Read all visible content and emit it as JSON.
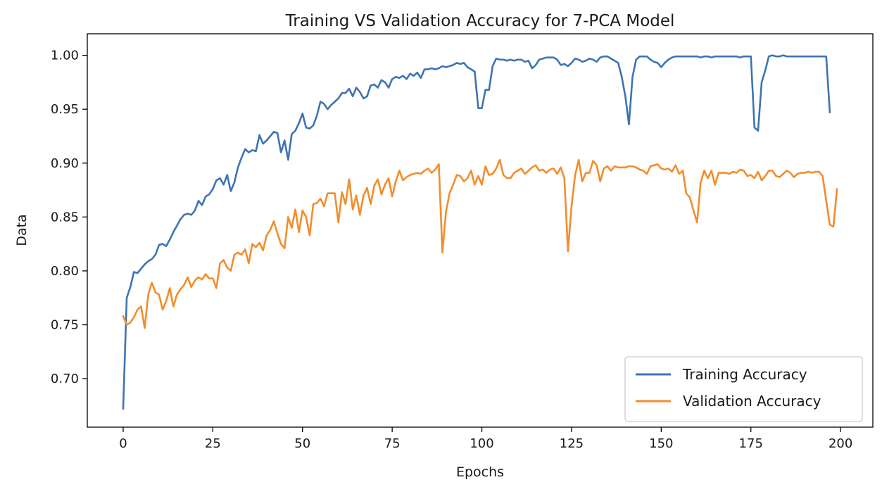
{
  "chart_data": {
    "type": "line",
    "title": "Training VS Validation Accuracy for 7-PCA Model",
    "xlabel": "Epochs",
    "ylabel": "Data",
    "xlim": [
      -10,
      209
    ],
    "ylim": [
      0.655,
      1.02
    ],
    "x_ticks": [
      0,
      25,
      50,
      75,
      100,
      125,
      150,
      175,
      200
    ],
    "y_ticks": [
      0.7,
      0.75,
      0.8,
      0.85,
      0.9,
      0.95,
      1.0
    ],
    "y_tick_labels": [
      "0.70",
      "0.75",
      "0.80",
      "0.85",
      "0.90",
      "0.95",
      "1.00"
    ],
    "x_tick_labels": [
      "0",
      "25",
      "50",
      "75",
      "100",
      "125",
      "150",
      "175",
      "200"
    ],
    "grid": false,
    "legend_position": "lower-right",
    "x_start": 0,
    "x_step": 1,
    "series": [
      {
        "name": "Training Accuracy",
        "color": "#3d74b3",
        "values": [
          0.672,
          0.775,
          0.785,
          0.799,
          0.798,
          0.802,
          0.806,
          0.809,
          0.811,
          0.815,
          0.824,
          0.825,
          0.823,
          0.829,
          0.836,
          0.842,
          0.848,
          0.852,
          0.853,
          0.852,
          0.856,
          0.865,
          0.861,
          0.869,
          0.871,
          0.876,
          0.884,
          0.886,
          0.88,
          0.889,
          0.874,
          0.882,
          0.896,
          0.905,
          0.913,
          0.91,
          0.912,
          0.911,
          0.926,
          0.918,
          0.921,
          0.925,
          0.929,
          0.928,
          0.91,
          0.921,
          0.903,
          0.927,
          0.93,
          0.937,
          0.946,
          0.933,
          0.932,
          0.935,
          0.944,
          0.957,
          0.955,
          0.95,
          0.954,
          0.957,
          0.96,
          0.965,
          0.965,
          0.969,
          0.962,
          0.97,
          0.966,
          0.96,
          0.962,
          0.972,
          0.973,
          0.97,
          0.977,
          0.975,
          0.97,
          0.978,
          0.98,
          0.979,
          0.981,
          0.978,
          0.983,
          0.981,
          0.984,
          0.979,
          0.987,
          0.987,
          0.988,
          0.987,
          0.988,
          0.99,
          0.989,
          0.99,
          0.991,
          0.993,
          0.992,
          0.993,
          0.989,
          0.987,
          0.985,
          0.951,
          0.951,
          0.968,
          0.968,
          0.99,
          0.997,
          0.996,
          0.996,
          0.995,
          0.996,
          0.995,
          0.996,
          0.996,
          0.994,
          0.995,
          0.988,
          0.991,
          0.996,
          0.997,
          0.998,
          0.998,
          0.998,
          0.996,
          0.991,
          0.992,
          0.99,
          0.993,
          0.997,
          0.996,
          0.994,
          0.995,
          0.997,
          0.996,
          0.994,
          0.998,
          0.999,
          0.999,
          0.997,
          0.995,
          0.993,
          0.98,
          0.962,
          0.936,
          0.98,
          0.996,
          0.999,
          0.999,
          0.999,
          0.996,
          0.994,
          0.993,
          0.989,
          0.993,
          0.996,
          0.998,
          0.999,
          0.999,
          0.999,
          0.999,
          0.999,
          0.999,
          0.999,
          0.998,
          0.999,
          0.999,
          0.998,
          0.999,
          0.999,
          0.999,
          0.999,
          0.999,
          0.999,
          0.999,
          0.998,
          0.999,
          0.999,
          0.999,
          0.933,
          0.93,
          0.975,
          0.986,
          0.999,
          1.0,
          0.999,
          0.999,
          1.0,
          0.999,
          0.999,
          0.999,
          0.999,
          0.999,
          0.999,
          0.999,
          0.999,
          0.999,
          0.999,
          0.999,
          0.999,
          0.947
        ]
      },
      {
        "name": "Validation Accuracy",
        "color": "#f28d2c",
        "values": [
          0.758,
          0.75,
          0.752,
          0.757,
          0.764,
          0.767,
          0.747,
          0.778,
          0.789,
          0.78,
          0.778,
          0.764,
          0.772,
          0.784,
          0.767,
          0.778,
          0.783,
          0.787,
          0.794,
          0.785,
          0.791,
          0.794,
          0.792,
          0.797,
          0.793,
          0.793,
          0.784,
          0.807,
          0.81,
          0.803,
          0.8,
          0.815,
          0.817,
          0.815,
          0.82,
          0.807,
          0.825,
          0.822,
          0.826,
          0.819,
          0.833,
          0.838,
          0.846,
          0.835,
          0.825,
          0.821,
          0.85,
          0.84,
          0.857,
          0.836,
          0.856,
          0.85,
          0.833,
          0.862,
          0.863,
          0.867,
          0.86,
          0.872,
          0.872,
          0.872,
          0.845,
          0.873,
          0.862,
          0.885,
          0.857,
          0.87,
          0.852,
          0.87,
          0.877,
          0.862,
          0.879,
          0.885,
          0.871,
          0.88,
          0.886,
          0.869,
          0.883,
          0.893,
          0.884,
          0.887,
          0.889,
          0.89,
          0.891,
          0.89,
          0.893,
          0.895,
          0.891,
          0.894,
          0.899,
          0.817,
          0.855,
          0.872,
          0.88,
          0.889,
          0.888,
          0.883,
          0.886,
          0.893,
          0.88,
          0.888,
          0.88,
          0.897,
          0.889,
          0.89,
          0.895,
          0.903,
          0.889,
          0.886,
          0.886,
          0.891,
          0.893,
          0.895,
          0.89,
          0.893,
          0.896,
          0.898,
          0.893,
          0.894,
          0.891,
          0.894,
          0.895,
          0.89,
          0.896,
          0.886,
          0.818,
          0.86,
          0.889,
          0.903,
          0.883,
          0.891,
          0.891,
          0.902,
          0.898,
          0.883,
          0.895,
          0.897,
          0.893,
          0.897,
          0.896,
          0.896,
          0.896,
          0.897,
          0.897,
          0.896,
          0.894,
          0.893,
          0.89,
          0.897,
          0.898,
          0.899,
          0.895,
          0.894,
          0.895,
          0.892,
          0.898,
          0.89,
          0.893,
          0.872,
          0.868,
          0.856,
          0.845,
          0.882,
          0.893,
          0.886,
          0.893,
          0.88,
          0.891,
          0.891,
          0.891,
          0.89,
          0.892,
          0.891,
          0.894,
          0.893,
          0.888,
          0.889,
          0.886,
          0.892,
          0.884,
          0.888,
          0.893,
          0.893,
          0.888,
          0.887,
          0.89,
          0.893,
          0.891,
          0.887,
          0.89,
          0.891,
          0.891,
          0.892,
          0.891,
          0.892,
          0.892,
          0.888,
          0.865,
          0.843,
          0.841,
          0.876
        ]
      }
    ]
  }
}
